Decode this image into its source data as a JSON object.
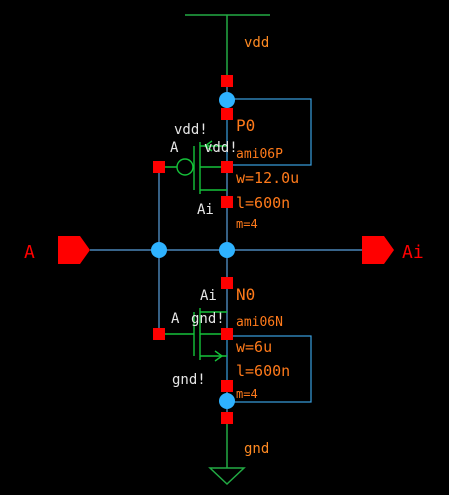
{
  "colors": {
    "background": "#000000",
    "wire": "#5aa0dc",
    "supply_net": "#22aa44",
    "pin": "#ff0000",
    "dot": "#2eb2ff",
    "device_label": "#ff7a1a",
    "net_label": "#e6e6e6",
    "device_body": "#15c23a",
    "highlight_box": "#3aa0e0",
    "supply_text": "#ff8a22"
  },
  "supply": {
    "vdd": "vdd",
    "gnd": "gnd"
  },
  "pins": {
    "input": "A",
    "output": "Ai"
  },
  "pmos": {
    "instance": "P0",
    "model": "ami06P",
    "width": "w=12.0u",
    "length": "l=600n",
    "mult": "m=4",
    "gate_net": "A",
    "drain_net": "Ai",
    "bulk_net": "vdd!",
    "source_net": "vdd!"
  },
  "nmos": {
    "instance": "N0",
    "model": "ami06N",
    "width": "w=6u",
    "length": "l=600n",
    "mult": "m=4",
    "gate_net": "A",
    "drain_net": "Ai",
    "bulk_net": "gnd!",
    "source_net": "gnd!"
  }
}
